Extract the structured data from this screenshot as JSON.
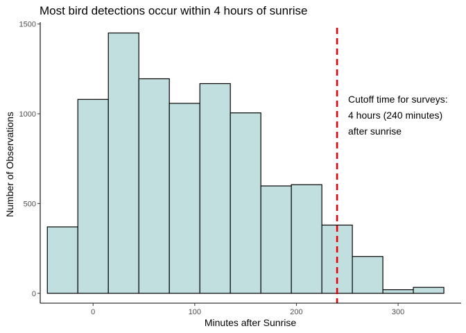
{
  "chart_data": {
    "type": "bar",
    "title": "Most bird detections occur within 4 hours of sunrise",
    "xlabel": "Minutes after Sunrise",
    "ylabel": "Number of Observations",
    "xlim": [
      -52,
      362
    ],
    "ylim": [
      -55,
      1510
    ],
    "xticks": [
      0,
      100,
      200,
      300
    ],
    "yticks": [
      0,
      500,
      1000,
      1500
    ],
    "grid": false,
    "bin_width": 30,
    "bins": [
      {
        "x0": -45,
        "x1": -15,
        "count": 370
      },
      {
        "x0": -15,
        "x1": 15,
        "count": 1080
      },
      {
        "x0": 15,
        "x1": 45,
        "count": 1450
      },
      {
        "x0": 45,
        "x1": 75,
        "count": 1195
      },
      {
        "x0": 75,
        "x1": 105,
        "count": 1058
      },
      {
        "x0": 105,
        "x1": 135,
        "count": 1168
      },
      {
        "x0": 135,
        "x1": 165,
        "count": 1005
      },
      {
        "x0": 165,
        "x1": 195,
        "count": 598
      },
      {
        "x0": 195,
        "x1": 225,
        "count": 605
      },
      {
        "x0": 225,
        "x1": 255,
        "count": 380
      },
      {
        "x0": 255,
        "x1": 285,
        "count": 205
      },
      {
        "x0": 285,
        "x1": 315,
        "count": 20
      },
      {
        "x0": 315,
        "x1": 345,
        "count": 33
      }
    ],
    "bar_fill": "#c2dfe0",
    "bar_stroke": "#000000",
    "cutoff": {
      "x": 240,
      "color": "#e8000b",
      "label_lines": [
        "Cutoff time for surveys:",
        "4 hours (240 minutes)",
        "after sunrise"
      ]
    }
  }
}
